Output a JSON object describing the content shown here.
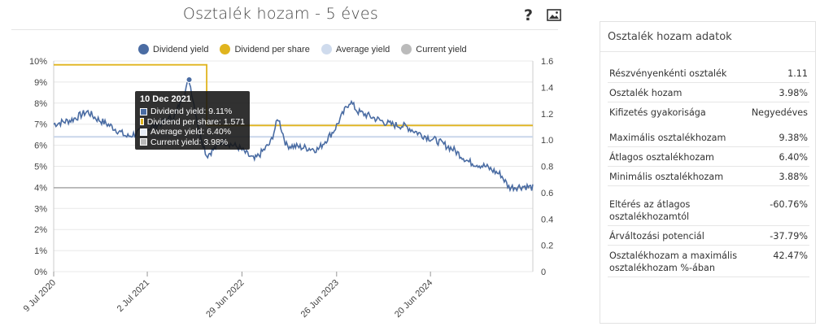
{
  "header": {
    "title": "Osztalék hozam - 5 éves",
    "help_icon": "question-mark-icon",
    "image_icon": "image-icon"
  },
  "chart_data": {
    "type": "line",
    "title": "Osztalék hozam - 5 éves",
    "x_ticks": [
      "9 Jul 2020",
      "2 Jul 2021",
      "29 Jun 2022",
      "26 Jun 2023",
      "20 Jun 2024"
    ],
    "y_left": {
      "min": 0,
      "max": 10,
      "ticks": [
        "0%",
        "1%",
        "2%",
        "3%",
        "4%",
        "5%",
        "6%",
        "7%",
        "8%",
        "9%",
        "10%"
      ]
    },
    "y_right": {
      "min": 0,
      "max": 1.6,
      "ticks": [
        "0",
        "0.2",
        "0.4",
        "0.6",
        "0.8",
        "1.0",
        "1.2",
        "1.4",
        "1.6"
      ]
    },
    "grid": true,
    "legend_position": "top",
    "series": [
      {
        "name": "Dividend yield",
        "axis": "left",
        "color": "#4a6ca3",
        "points": [
          [
            "9 Jul 2020",
            7.0
          ],
          [
            "Sep 2020",
            7.2
          ],
          [
            "Nov 2020",
            7.6
          ],
          [
            "Dec 2020",
            7.3
          ],
          [
            "Feb 2021",
            6.9
          ],
          [
            "Apr 2021",
            6.4
          ],
          [
            "Jun 2021",
            6.7
          ],
          [
            "Aug 2021",
            7.0
          ],
          [
            "Oct 2021",
            7.4
          ],
          [
            "10 Dec 2021",
            9.11
          ],
          [
            "Jan 2022",
            6.8
          ],
          [
            "Feb 2022",
            5.5
          ],
          [
            "Apr 2022",
            6.2
          ],
          [
            "Jun 2022",
            5.9
          ],
          [
            "Aug 2022",
            5.3
          ],
          [
            "Oct 2022",
            6.1
          ],
          [
            "Nov 2022",
            7.3
          ],
          [
            "Dec 2022",
            6.0
          ],
          [
            "Feb 2023",
            5.9
          ],
          [
            "Apr 2023",
            5.8
          ],
          [
            "Jun 2023",
            6.7
          ],
          [
            "Aug 2023",
            8.1
          ],
          [
            "Sep 2023",
            7.6
          ],
          [
            "Nov 2023",
            7.3
          ],
          [
            "Jan 2024",
            7.0
          ],
          [
            "Mar 2024",
            6.9
          ],
          [
            "May 2024",
            6.5
          ],
          [
            "Jul 2024",
            6.2
          ],
          [
            "Sep 2024",
            5.8
          ],
          [
            "Nov 2024",
            5.2
          ],
          [
            "Jan 2025",
            5.0
          ],
          [
            "Mar 2025",
            4.6
          ],
          [
            "Apr 2025",
            4.0
          ],
          [
            "Jun 2025",
            4.05
          ],
          [
            "Jul 2025",
            3.98
          ]
        ]
      },
      {
        "name": "Dividend per share",
        "axis": "right",
        "color": "#e0b41e",
        "segments": [
          {
            "from": "9 Jul 2020",
            "to": "Feb 2022",
            "value": 1.571
          },
          {
            "from": "Feb 2022",
            "to": "Jul 2025",
            "value": 1.11
          }
        ]
      },
      {
        "name": "Average yield",
        "axis": "left",
        "color": "#c9d6ea",
        "value": 6.4
      },
      {
        "name": "Current yield",
        "axis": "left",
        "color": "#aaaaaa",
        "value": 3.98
      }
    ]
  },
  "tooltip": {
    "date": "10 Dec 2021",
    "rows": [
      {
        "text": "Dividend yield: 9.11%",
        "color": "#4a6ca3"
      },
      {
        "text": "Dividend per share: 1.571",
        "color": "#e0b41e"
      },
      {
        "text": "Average yield: 6.40%",
        "color": "#e6ecf5"
      },
      {
        "text": "Current yield: 3.98%",
        "color": "#b9b9b9"
      }
    ]
  },
  "info": {
    "title": "Osztalék hozam adatok",
    "groups": [
      [
        {
          "label": "Részvényenkénti osztalék",
          "value": "1.11"
        },
        {
          "label": "Osztalék hozam",
          "value": "3.98%"
        },
        {
          "label": "Kifizetés gyakorisága",
          "value": "Negyedéves"
        }
      ],
      [
        {
          "label": "Maximális osztalékhozam",
          "value": "9.38%"
        },
        {
          "label": "Átlagos osztalékhozam",
          "value": "6.40%"
        },
        {
          "label": "Minimális osztalékhozam",
          "value": "3.88%"
        }
      ],
      [
        {
          "label": "Eltérés az átlagos osztalékhozamtól",
          "value": "-60.76%"
        },
        {
          "label": "Árváltozási potenciál",
          "value": "-37.79%"
        },
        {
          "label": "Osztalékhozam a maximális osztalékhozam %-ában",
          "value": "42.47%"
        }
      ]
    ]
  }
}
